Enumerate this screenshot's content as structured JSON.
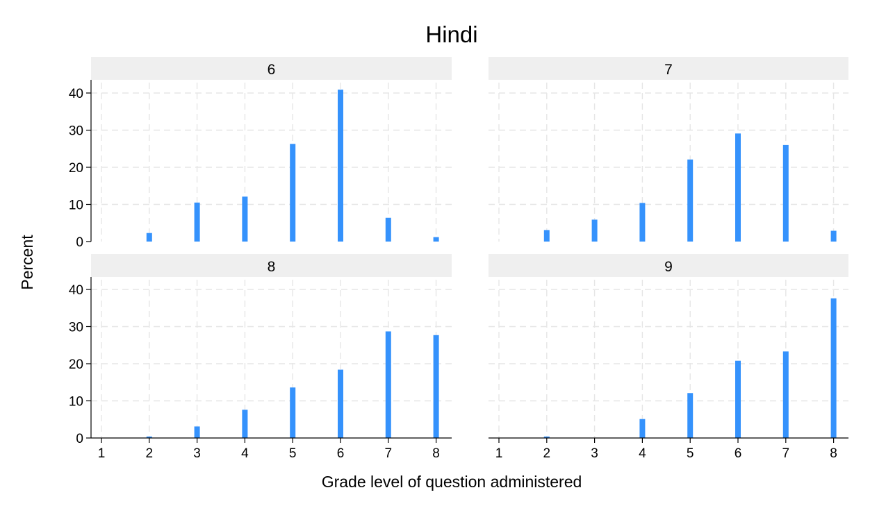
{
  "chart_data": {
    "type": "bar",
    "title": "Hindi",
    "xlabel": "Grade level of question administered",
    "ylabel": "Percent",
    "x_ticks": [
      1,
      2,
      3,
      4,
      5,
      6,
      7,
      8
    ],
    "y_ticks": [
      0,
      10,
      20,
      30,
      40
    ],
    "ylim": [
      0,
      43
    ],
    "grid": true,
    "bar_color": "#3592fc",
    "panels": [
      {
        "label": "6",
        "x": [
          2,
          3,
          4,
          5,
          6,
          7,
          8
        ],
        "values": [
          2.3,
          10.5,
          12.1,
          26.3,
          40.9,
          6.4,
          1.2
        ]
      },
      {
        "label": "7",
        "x": [
          2,
          3,
          4,
          5,
          6,
          7,
          8
        ],
        "values": [
          3.1,
          5.9,
          10.4,
          22.1,
          29.1,
          26.0,
          2.9
        ]
      },
      {
        "label": "8",
        "x": [
          2,
          3,
          4,
          5,
          6,
          7,
          8
        ],
        "values": [
          0.4,
          3.1,
          7.6,
          13.6,
          18.4,
          28.7,
          27.7
        ]
      },
      {
        "label": "9",
        "x": [
          2,
          3,
          4,
          5,
          6,
          7,
          8
        ],
        "values": [
          0.4,
          0.0,
          5.1,
          12.1,
          20.8,
          23.3,
          37.6
        ]
      }
    ]
  }
}
